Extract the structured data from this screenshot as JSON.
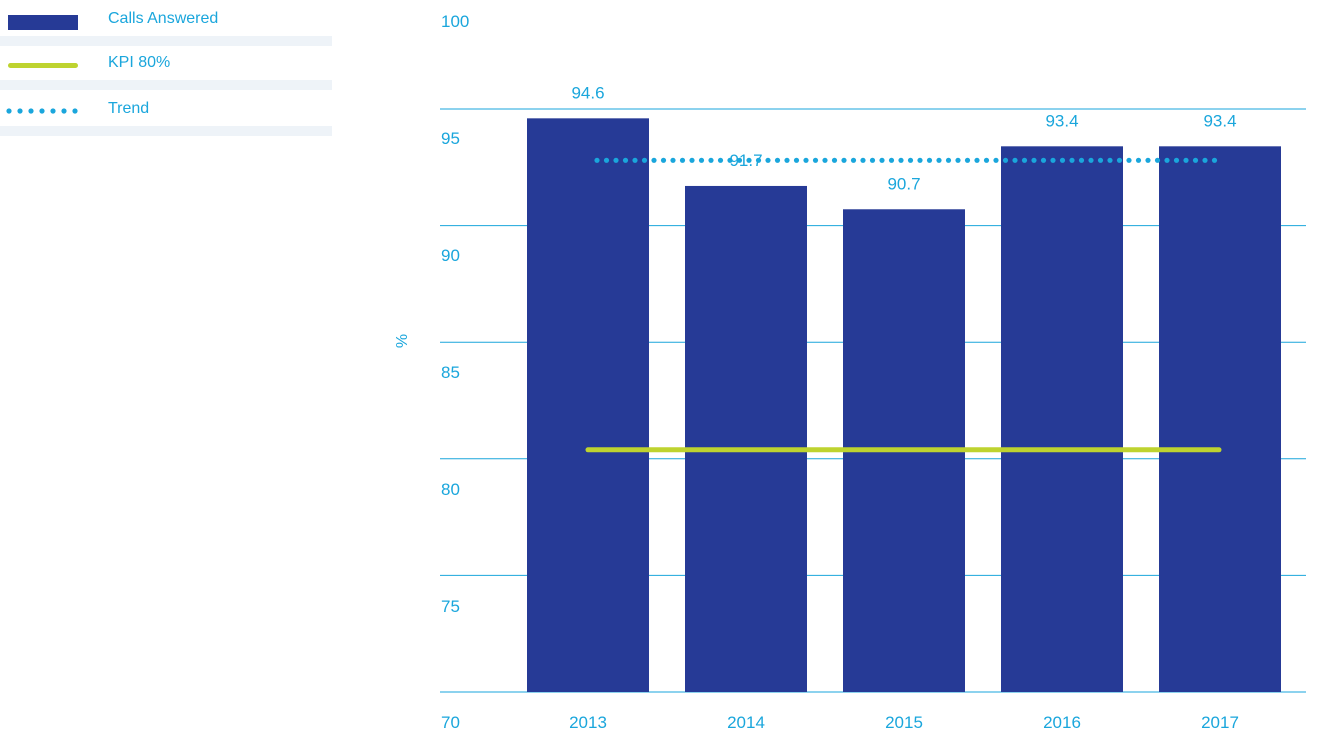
{
  "chart_data": {
    "type": "bar",
    "categories": [
      "2013",
      "2014",
      "2015",
      "2016",
      "2017"
    ],
    "series": [
      {
        "name": "Calls Answered",
        "type": "bar",
        "color": "#263a96",
        "values": [
          94.6,
          91.7,
          90.7,
          93.4,
          93.4
        ],
        "data_labels": [
          "94.6",
          "91.7",
          "90.7",
          "93.4",
          "93.4"
        ]
      },
      {
        "name": "KPI 80%",
        "type": "line",
        "color": "#bed32f",
        "values": [
          80,
          80,
          80,
          80,
          80
        ]
      },
      {
        "name": "Trend",
        "type": "dotted-line",
        "color": "#1aa6dc",
        "values": [
          92.8,
          92.8,
          92.8,
          92.8,
          92.8
        ]
      }
    ],
    "ylabel": "%",
    "ylim": [
      70,
      100
    ],
    "yticks": [
      "70",
      "75",
      "80",
      "85",
      "90",
      "95",
      "100"
    ],
    "grid": true,
    "legend_position": "top-left",
    "colors": {
      "text": "#1aa6dc",
      "grid": "#1aa6dc",
      "legend_band": "#eef3f8"
    }
  }
}
